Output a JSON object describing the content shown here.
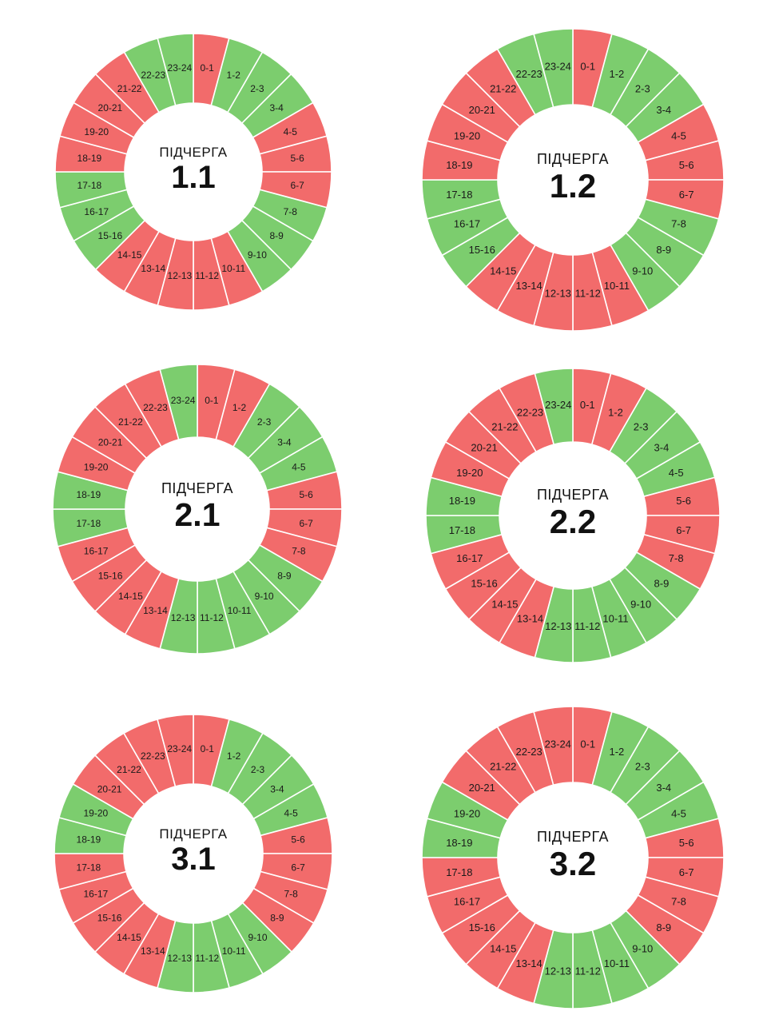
{
  "colors": {
    "on": "#7ccd6e",
    "off": "#f26b6b",
    "separator": "#ffffff"
  },
  "hour_labels": [
    "0-1",
    "1-2",
    "2-3",
    "3-4",
    "4-5",
    "5-6",
    "6-7",
    "7-8",
    "8-9",
    "9-10",
    "10-11",
    "11-12",
    "12-13",
    "13-14",
    "14-15",
    "15-16",
    "16-17",
    "17-18",
    "18-19",
    "19-20",
    "20-21",
    "21-22",
    "22-23",
    "23-24"
  ],
  "chart_data": [
    {
      "type": "pie",
      "caption": "ПІДЧЕРГА",
      "queue": "1.1",
      "categories": [
        "0-1",
        "1-2",
        "2-3",
        "3-4",
        "4-5",
        "5-6",
        "6-7",
        "7-8",
        "8-9",
        "9-10",
        "10-11",
        "11-12",
        "12-13",
        "13-14",
        "14-15",
        "15-16",
        "16-17",
        "17-18",
        "18-19",
        "19-20",
        "20-21",
        "21-22",
        "22-23",
        "23-24"
      ],
      "status": [
        "off",
        "on",
        "on",
        "on",
        "off",
        "off",
        "off",
        "on",
        "on",
        "on",
        "off",
        "off",
        "off",
        "off",
        "off",
        "on",
        "on",
        "on",
        "off",
        "off",
        "off",
        "off",
        "on",
        "on"
      ]
    },
    {
      "type": "pie",
      "caption": "ПІДЧЕРГА",
      "queue": "1.2",
      "categories": [
        "0-1",
        "1-2",
        "2-3",
        "3-4",
        "4-5",
        "5-6",
        "6-7",
        "7-8",
        "8-9",
        "9-10",
        "10-11",
        "11-12",
        "12-13",
        "13-14",
        "14-15",
        "15-16",
        "16-17",
        "17-18",
        "18-19",
        "19-20",
        "20-21",
        "21-22",
        "22-23",
        "23-24"
      ],
      "status": [
        "off",
        "on",
        "on",
        "on",
        "off",
        "off",
        "off",
        "on",
        "on",
        "on",
        "off",
        "off",
        "off",
        "off",
        "off",
        "on",
        "on",
        "on",
        "off",
        "off",
        "off",
        "off",
        "on",
        "on"
      ]
    },
    {
      "type": "pie",
      "caption": "ПІДЧЕРГА",
      "queue": "2.1",
      "categories": [
        "0-1",
        "1-2",
        "2-3",
        "3-4",
        "4-5",
        "5-6",
        "6-7",
        "7-8",
        "8-9",
        "9-10",
        "10-11",
        "11-12",
        "12-13",
        "13-14",
        "14-15",
        "15-16",
        "16-17",
        "17-18",
        "18-19",
        "19-20",
        "20-21",
        "21-22",
        "22-23",
        "23-24"
      ],
      "status": [
        "off",
        "off",
        "on",
        "on",
        "on",
        "off",
        "off",
        "off",
        "on",
        "on",
        "on",
        "on",
        "on",
        "off",
        "off",
        "off",
        "off",
        "on",
        "on",
        "off",
        "off",
        "off",
        "off",
        "on"
      ]
    },
    {
      "type": "pie",
      "caption": "ПІДЧЕРГА",
      "queue": "2.2",
      "categories": [
        "0-1",
        "1-2",
        "2-3",
        "3-4",
        "4-5",
        "5-6",
        "6-7",
        "7-8",
        "8-9",
        "9-10",
        "10-11",
        "11-12",
        "12-13",
        "13-14",
        "14-15",
        "15-16",
        "16-17",
        "17-18",
        "18-19",
        "19-20",
        "20-21",
        "21-22",
        "22-23",
        "23-24"
      ],
      "status": [
        "off",
        "off",
        "on",
        "on",
        "on",
        "off",
        "off",
        "off",
        "on",
        "on",
        "on",
        "on",
        "on",
        "off",
        "off",
        "off",
        "off",
        "on",
        "on",
        "off",
        "off",
        "off",
        "off",
        "on"
      ]
    },
    {
      "type": "pie",
      "caption": "ПІДЧЕРГА",
      "queue": "3.1",
      "categories": [
        "0-1",
        "1-2",
        "2-3",
        "3-4",
        "4-5",
        "5-6",
        "6-7",
        "7-8",
        "8-9",
        "9-10",
        "10-11",
        "11-12",
        "12-13",
        "13-14",
        "14-15",
        "15-16",
        "16-17",
        "17-18",
        "18-19",
        "19-20",
        "20-21",
        "21-22",
        "22-23",
        "23-24"
      ],
      "status": [
        "off",
        "on",
        "on",
        "on",
        "on",
        "off",
        "off",
        "off",
        "off",
        "on",
        "on",
        "on",
        "on",
        "off",
        "off",
        "off",
        "off",
        "off",
        "on",
        "on",
        "off",
        "off",
        "off",
        "off"
      ]
    },
    {
      "type": "pie",
      "caption": "ПІДЧЕРГА",
      "queue": "3.2",
      "categories": [
        "0-1",
        "1-2",
        "2-3",
        "3-4",
        "4-5",
        "5-6",
        "6-7",
        "7-8",
        "8-9",
        "9-10",
        "10-11",
        "11-12",
        "12-13",
        "13-14",
        "14-15",
        "15-16",
        "16-17",
        "17-18",
        "18-19",
        "19-20",
        "20-21",
        "21-22",
        "22-23",
        "23-24"
      ],
      "status": [
        "off",
        "on",
        "on",
        "on",
        "on",
        "off",
        "off",
        "off",
        "off",
        "on",
        "on",
        "on",
        "on",
        "off",
        "off",
        "off",
        "off",
        "off",
        "on",
        "on",
        "off",
        "off",
        "off",
        "off"
      ]
    }
  ]
}
